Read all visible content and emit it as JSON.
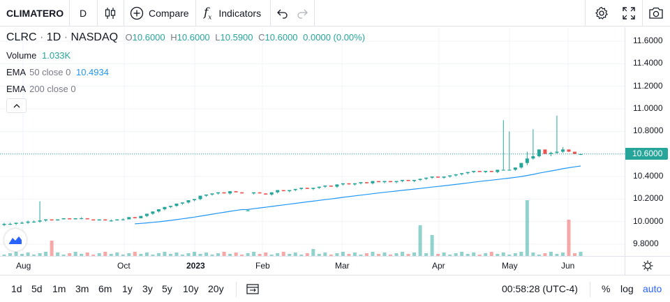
{
  "toolbar": {
    "symbol": "CLIMATERO",
    "interval": "D",
    "compare_label": "Compare",
    "indicators_label": "Indicators"
  },
  "legend": {
    "symbol": "CLRC",
    "interval": "1D",
    "exchange": "NASDAQ",
    "open_label": "O",
    "open": "10.6000",
    "high_label": "H",
    "high": "10.6000",
    "low_label": "L",
    "low": "10.5900",
    "close_label": "C",
    "close": "10.6000",
    "change": "0.0000 (0.00%)",
    "volume_label": "Volume",
    "volume": "1.033K",
    "ema50_label": "EMA",
    "ema50_params": "50 close 0",
    "ema50_value": "10.4934",
    "ema200_label": "EMA",
    "ema200_params": "200 close 0"
  },
  "price_scale": {
    "ticks": [
      "11.6000",
      "11.4000",
      "11.2000",
      "11.0000",
      "10.8000",
      "10.6000",
      "10.4000",
      "10.2000",
      "10.0000",
      "9.8000"
    ],
    "last_price": "10.6000"
  },
  "time_scale": {
    "labels": [
      "Aug",
      "Oct",
      "2023",
      "Feb",
      "Mar",
      "Apr",
      "May",
      "Jun"
    ]
  },
  "bottom": {
    "ranges": [
      "1d",
      "5d",
      "1m",
      "3m",
      "6m",
      "1y",
      "3y",
      "5y",
      "10y",
      "20y"
    ],
    "clock": "00:58:28 (UTC-4)",
    "percent_label": "%",
    "log_label": "log",
    "auto_label": "auto"
  },
  "colors": {
    "up": "#26a69a",
    "down": "#ef5350",
    "ema": "#2196f3",
    "accent": "#2962ff"
  },
  "chart_data": {
    "type": "candlestick",
    "symbol": "CLRC",
    "ylim": [
      9.72,
      11.7
    ],
    "ema50_last": 10.4934,
    "candles": [
      [
        9.97,
        9.99,
        9.96,
        9.98
      ],
      [
        9.98,
        9.99,
        9.97,
        9.98
      ],
      [
        9.98,
        9.99,
        9.97,
        9.99
      ],
      [
        9.99,
        10.0,
        9.98,
        9.99
      ],
      [
        9.99,
        10.01,
        9.98,
        10.0
      ],
      [
        10.0,
        10.01,
        9.99,
        10.0
      ],
      [
        10.0,
        10.18,
        9.99,
        10.01
      ],
      [
        10.01,
        10.02,
        10.0,
        10.02
      ],
      [
        10.02,
        10.02,
        10.01,
        10.01
      ],
      [
        10.01,
        10.02,
        10.01,
        10.02
      ],
      [
        10.02,
        10.03,
        10.02,
        10.03
      ],
      [
        10.03,
        10.03,
        10.02,
        10.02
      ],
      [
        10.02,
        10.03,
        10.02,
        10.03
      ],
      [
        10.03,
        10.04,
        10.02,
        10.03
      ],
      [
        10.03,
        10.03,
        10.02,
        10.02
      ],
      [
        10.02,
        10.02,
        10.01,
        10.01
      ],
      [
        10.01,
        10.02,
        10.01,
        10.02
      ],
      [
        10.02,
        10.02,
        10.01,
        10.01
      ],
      [
        10.01,
        10.02,
        10.0,
        10.01
      ],
      [
        10.01,
        10.02,
        10.01,
        10.02
      ],
      [
        10.02,
        10.03,
        10.01,
        10.02
      ],
      [
        10.02,
        10.04,
        10.02,
        10.04
      ],
      [
        10.04,
        10.04,
        10.03,
        10.03
      ],
      [
        10.03,
        10.05,
        10.03,
        10.05
      ],
      [
        10.05,
        10.07,
        10.04,
        10.07
      ],
      [
        10.07,
        10.09,
        10.06,
        10.09
      ],
      [
        10.09,
        10.11,
        10.08,
        10.11
      ],
      [
        10.11,
        10.13,
        10.1,
        10.13
      ],
      [
        10.13,
        10.14,
        10.12,
        10.14
      ],
      [
        10.14,
        10.16,
        10.13,
        10.16
      ],
      [
        10.16,
        10.17,
        10.15,
        10.17
      ],
      [
        10.17,
        10.19,
        10.16,
        10.19
      ],
      [
        10.19,
        10.2,
        10.18,
        10.2
      ],
      [
        10.2,
        10.23,
        10.19,
        10.23
      ],
      [
        10.23,
        10.24,
        10.22,
        10.24
      ],
      [
        10.24,
        10.25,
        10.23,
        10.25
      ],
      [
        10.25,
        10.26,
        10.24,
        10.26
      ],
      [
        10.26,
        10.26,
        10.25,
        10.25
      ],
      [
        10.25,
        10.27,
        10.24,
        10.27
      ],
      [
        10.27,
        10.27,
        10.26,
        10.26
      ],
      [
        10.26,
        10.26,
        10.25,
        10.25
      ],
      [
        10.1,
        10.11,
        10.1,
        10.1
      ],
      [
        10.25,
        10.26,
        10.24,
        10.26
      ],
      [
        10.26,
        10.26,
        10.25,
        10.25
      ],
      [
        10.25,
        10.25,
        10.24,
        10.24
      ],
      [
        10.24,
        10.26,
        10.23,
        10.26
      ],
      [
        10.26,
        10.28,
        10.25,
        10.28
      ],
      [
        10.28,
        10.28,
        10.27,
        10.27
      ],
      [
        10.27,
        10.28,
        10.26,
        10.28
      ],
      [
        10.28,
        10.29,
        10.27,
        10.29
      ],
      [
        10.29,
        10.3,
        10.28,
        10.3
      ],
      [
        10.3,
        10.3,
        10.29,
        10.29
      ],
      [
        10.29,
        10.3,
        10.28,
        10.3
      ],
      [
        10.3,
        10.31,
        10.29,
        10.31
      ],
      [
        10.31,
        10.32,
        10.3,
        10.32
      ],
      [
        10.32,
        10.32,
        10.31,
        10.31
      ],
      [
        10.31,
        10.33,
        10.3,
        10.33
      ],
      [
        10.33,
        10.34,
        10.32,
        10.34
      ],
      [
        10.34,
        10.34,
        10.33,
        10.33
      ],
      [
        10.33,
        10.34,
        10.32,
        10.34
      ],
      [
        10.34,
        10.35,
        10.33,
        10.35
      ],
      [
        10.35,
        10.35,
        10.34,
        10.34
      ],
      [
        10.34,
        10.36,
        10.33,
        10.36
      ],
      [
        10.36,
        10.36,
        10.35,
        10.35
      ],
      [
        10.35,
        10.36,
        10.34,
        10.36
      ],
      [
        10.36,
        10.36,
        10.35,
        10.35
      ],
      [
        10.35,
        10.36,
        10.34,
        10.36
      ],
      [
        10.36,
        10.37,
        10.35,
        10.37
      ],
      [
        10.37,
        10.37,
        10.36,
        10.36
      ],
      [
        10.36,
        10.37,
        10.35,
        10.37
      ],
      [
        10.37,
        10.38,
        10.36,
        10.38
      ],
      [
        10.38,
        10.39,
        10.37,
        10.39
      ],
      [
        10.39,
        10.4,
        10.38,
        10.4
      ],
      [
        10.4,
        10.4,
        10.39,
        10.39
      ],
      [
        10.39,
        10.4,
        10.38,
        10.4
      ],
      [
        10.4,
        10.41,
        10.39,
        10.41
      ],
      [
        10.41,
        10.42,
        10.4,
        10.42
      ],
      [
        10.42,
        10.43,
        10.41,
        10.43
      ],
      [
        10.43,
        10.44,
        10.42,
        10.44
      ],
      [
        10.44,
        10.45,
        10.43,
        10.45
      ],
      [
        10.45,
        10.45,
        10.44,
        10.44
      ],
      [
        10.44,
        10.45,
        10.43,
        10.45
      ],
      [
        10.45,
        10.45,
        10.44,
        10.44
      ],
      [
        10.44,
        10.46,
        10.43,
        10.46
      ],
      [
        10.46,
        10.9,
        10.46,
        10.46
      ],
      [
        10.46,
        10.8,
        10.46,
        10.46
      ],
      [
        10.46,
        10.48,
        10.45,
        10.48
      ],
      [
        10.48,
        10.52,
        10.47,
        10.52
      ],
      [
        10.52,
        10.62,
        10.5,
        10.56
      ],
      [
        10.56,
        10.82,
        10.55,
        10.58
      ],
      [
        10.58,
        10.64,
        10.57,
        10.64
      ],
      [
        10.64,
        10.64,
        10.6,
        10.6
      ],
      [
        10.6,
        10.62,
        10.58,
        10.61
      ],
      [
        10.61,
        10.94,
        10.6,
        10.62
      ],
      [
        10.62,
        10.66,
        10.61,
        10.64
      ],
      [
        10.64,
        10.64,
        10.62,
        10.62
      ],
      [
        10.62,
        10.62,
        10.6,
        10.6
      ],
      [
        10.6,
        10.6,
        10.59,
        10.6
      ]
    ]
  }
}
